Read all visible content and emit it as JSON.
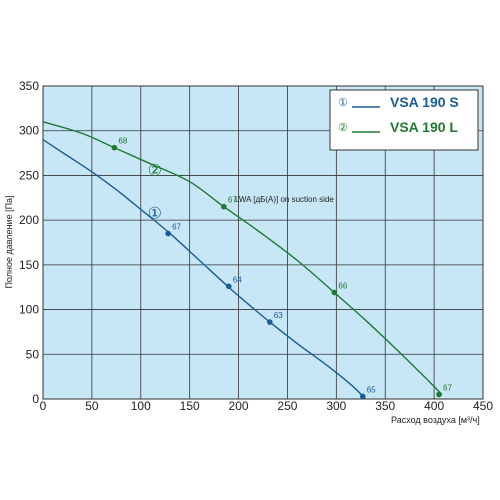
{
  "chart_data": {
    "type": "line",
    "xlabel": "Расход воздуха [м³/ч]",
    "ylabel": "Полное давление [Па]",
    "xlim": [
      0,
      450
    ],
    "ylim": [
      0,
      350
    ],
    "x_ticks": [
      "0",
      "50",
      "100",
      "150",
      "200",
      "250",
      "300",
      "350",
      "400",
      "450"
    ],
    "y_ticks": [
      "0",
      "50",
      "100",
      "150",
      "200",
      "250",
      "300",
      "350"
    ],
    "grid": true,
    "legend_position": "top-right",
    "annotation": "LWA [дБ(A)] on suction side",
    "series": [
      {
        "name": "VSA 190 S",
        "marker": "①",
        "color": "#1c5a9a",
        "curve": [
          [
            0,
            290
          ],
          [
            25,
            272
          ],
          [
            50,
            254
          ],
          [
            75,
            234
          ],
          [
            100,
            212
          ],
          [
            130,
            185
          ],
          [
            160,
            155
          ],
          [
            190,
            125
          ],
          [
            210,
            106
          ],
          [
            232,
            86
          ],
          [
            260,
            62
          ],
          [
            290,
            38
          ],
          [
            315,
            16
          ],
          [
            330,
            0
          ]
        ],
        "points": [
          {
            "x": 128,
            "y": 185,
            "label": "67"
          },
          {
            "x": 190,
            "y": 126,
            "label": "64"
          },
          {
            "x": 232,
            "y": 86,
            "label": "63"
          },
          {
            "x": 327,
            "y": 3,
            "label": "65"
          }
        ]
      },
      {
        "name": "VSA 190 L",
        "marker": "②",
        "color": "#1e7a32",
        "curve": [
          [
            0,
            310
          ],
          [
            40,
            297
          ],
          [
            73,
            281
          ],
          [
            110,
            263
          ],
          [
            150,
            243
          ],
          [
            185,
            215
          ],
          [
            220,
            188
          ],
          [
            260,
            155
          ],
          [
            298,
            119
          ],
          [
            330,
            88
          ],
          [
            360,
            57
          ],
          [
            390,
            25
          ],
          [
            408,
            5
          ]
        ],
        "points": [
          {
            "x": 73,
            "y": 281,
            "label": "68"
          },
          {
            "x": 185,
            "y": 215,
            "label": "67"
          },
          {
            "x": 298,
            "y": 119,
            "label": "66"
          },
          {
            "x": 405,
            "y": 5,
            "label": "67"
          }
        ]
      }
    ]
  }
}
